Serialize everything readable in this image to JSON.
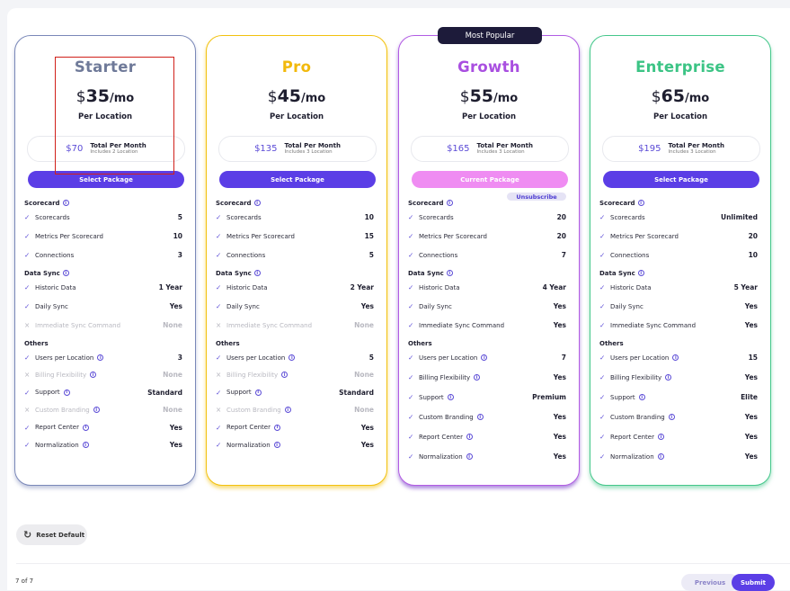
{
  "badge": "Most Popular",
  "plans": [
    {
      "key": "starter",
      "name": "Starter",
      "name_color": "#6f7a99",
      "currency": "$",
      "price": "35",
      "per": "/mo",
      "per_location": "Per Location",
      "total_amount": "$70",
      "total_label": "Total Per Month",
      "total_sub": "Includes 2 Location",
      "button": "Select Package",
      "button_state": "select",
      "unsubscribe": "",
      "groups": [
        {
          "title": "Scorecard",
          "info": true,
          "rows": [
            {
              "label": "Scorecards",
              "value": "5",
              "on": true,
              "info": false
            },
            {
              "label": "Metrics Per Scorecard",
              "value": "10",
              "on": true,
              "info": false
            },
            {
              "label": "Connections",
              "value": "3",
              "on": true,
              "info": false
            }
          ]
        },
        {
          "title": "Data Sync",
          "info": true,
          "rows": [
            {
              "label": "Historic Data",
              "value": "1 Year",
              "on": true,
              "info": false
            },
            {
              "label": "Daily Sync",
              "value": "Yes",
              "on": true,
              "info": false
            },
            {
              "label": "Immediate Sync Command",
              "value": "None",
              "on": false,
              "info": false
            }
          ]
        },
        {
          "title": "Others",
          "info": false,
          "rows": [
            {
              "label": "Users per Location",
              "value": "3",
              "on": true,
              "info": true
            },
            {
              "label": "Billing Flexibility",
              "value": "None",
              "on": false,
              "info": true
            },
            {
              "label": "Support",
              "value": "Standard",
              "on": true,
              "info": true
            },
            {
              "label": "Custom Branding",
              "value": "None",
              "on": false,
              "info": true
            },
            {
              "label": "Report Center",
              "value": "Yes",
              "on": true,
              "info": true
            },
            {
              "label": "Normalization",
              "value": "Yes",
              "on": true,
              "info": true
            }
          ]
        }
      ]
    },
    {
      "key": "pro",
      "name": "Pro",
      "name_color": "#f2b90c",
      "currency": "$",
      "price": "45",
      "per": "/mo",
      "per_location": "Per Location",
      "total_amount": "$135",
      "total_label": "Total Per Month",
      "total_sub": "Includes 3 Location",
      "button": "Select Package",
      "button_state": "select",
      "unsubscribe": "",
      "groups": [
        {
          "title": "Scorecard",
          "info": true,
          "rows": [
            {
              "label": "Scorecards",
              "value": "10",
              "on": true,
              "info": false
            },
            {
              "label": "Metrics Per Scorecard",
              "value": "15",
              "on": true,
              "info": false
            },
            {
              "label": "Connections",
              "value": "5",
              "on": true,
              "info": false
            }
          ]
        },
        {
          "title": "Data Sync",
          "info": true,
          "rows": [
            {
              "label": "Historic Data",
              "value": "2 Year",
              "on": true,
              "info": false
            },
            {
              "label": "Daily Sync",
              "value": "Yes",
              "on": true,
              "info": false
            },
            {
              "label": "Immediate Sync Command",
              "value": "None",
              "on": false,
              "info": false
            }
          ]
        },
        {
          "title": "Others",
          "info": false,
          "rows": [
            {
              "label": "Users per Location",
              "value": "5",
              "on": true,
              "info": true
            },
            {
              "label": "Billing Flexibility",
              "value": "None",
              "on": false,
              "info": true
            },
            {
              "label": "Support",
              "value": "Standard",
              "on": true,
              "info": true
            },
            {
              "label": "Custom Branding",
              "value": "None",
              "on": false,
              "info": true
            },
            {
              "label": "Report Center",
              "value": "Yes",
              "on": true,
              "info": true
            },
            {
              "label": "Normalization",
              "value": "Yes",
              "on": true,
              "info": true
            }
          ]
        }
      ]
    },
    {
      "key": "growth",
      "name": "Growth",
      "name_color": "#a94fe0",
      "currency": "$",
      "price": "55",
      "per": "/mo",
      "per_location": "Per Location",
      "total_amount": "$165",
      "total_label": "Total Per Month",
      "total_sub": "Includes 3 Location",
      "button": "Current Package",
      "button_state": "current",
      "unsubscribe": "Unsubscribe",
      "groups": [
        {
          "title": "Scorecard",
          "info": true,
          "rows": [
            {
              "label": "Scorecards",
              "value": "20",
              "on": true,
              "info": false
            },
            {
              "label": "Metrics Per Scorecard",
              "value": "20",
              "on": true,
              "info": false
            },
            {
              "label": "Connections",
              "value": "7",
              "on": true,
              "info": false
            }
          ]
        },
        {
          "title": "Data Sync",
          "info": true,
          "rows": [
            {
              "label": "Historic Data",
              "value": "4 Year",
              "on": true,
              "info": false
            },
            {
              "label": "Daily Sync",
              "value": "Yes",
              "on": true,
              "info": false
            },
            {
              "label": "Immediate Sync Command",
              "value": "Yes",
              "on": true,
              "info": false
            }
          ]
        },
        {
          "title": "Others",
          "info": false,
          "rows": [
            {
              "label": "Users per Location",
              "value": "7",
              "on": true,
              "info": true
            },
            {
              "label": "Billing Flexibility",
              "value": "Yes",
              "on": true,
              "info": true
            },
            {
              "label": "Support",
              "value": "Premium",
              "on": true,
              "info": true
            },
            {
              "label": "Custom Branding",
              "value": "Yes",
              "on": true,
              "info": true
            },
            {
              "label": "Report Center",
              "value": "Yes",
              "on": true,
              "info": true
            },
            {
              "label": "Normalization",
              "value": "Yes",
              "on": true,
              "info": true
            }
          ]
        }
      ]
    },
    {
      "key": "enterprise",
      "name": "Enterprise",
      "name_color": "#3cc485",
      "currency": "$",
      "price": "65",
      "per": "/mo",
      "per_location": "Per Location",
      "total_amount": "$195",
      "total_label": "Total Per Month",
      "total_sub": "Includes 3 Location",
      "button": "Select Package",
      "button_state": "select",
      "unsubscribe": "",
      "groups": [
        {
          "title": "Scorecard",
          "info": true,
          "rows": [
            {
              "label": "Scorecards",
              "value": "Unlimited",
              "on": true,
              "info": false
            },
            {
              "label": "Metrics Per Scorecard",
              "value": "20",
              "on": true,
              "info": false
            },
            {
              "label": "Connections",
              "value": "10",
              "on": true,
              "info": false
            }
          ]
        },
        {
          "title": "Data Sync",
          "info": true,
          "rows": [
            {
              "label": "Historic Data",
              "value": "5 Year",
              "on": true,
              "info": false
            },
            {
              "label": "Daily Sync",
              "value": "Yes",
              "on": true,
              "info": false
            },
            {
              "label": "Immediate Sync Command",
              "value": "Yes",
              "on": true,
              "info": false
            }
          ]
        },
        {
          "title": "Others",
          "info": false,
          "rows": [
            {
              "label": "Users per Location",
              "value": "15",
              "on": true,
              "info": true
            },
            {
              "label": "Billing Flexibility",
              "value": "Yes",
              "on": true,
              "info": true
            },
            {
              "label": "Support",
              "value": "Elite",
              "on": true,
              "info": true
            },
            {
              "label": "Custom Branding",
              "value": "Yes",
              "on": true,
              "info": true
            },
            {
              "label": "Report Center",
              "value": "Yes",
              "on": true,
              "info": true
            },
            {
              "label": "Normalization",
              "value": "Yes",
              "on": true,
              "info": true
            }
          ]
        }
      ]
    }
  ],
  "footer": {
    "reset_label": "Reset Default",
    "pager": "7 of 7",
    "previous_label": "Previous",
    "submit_label": "Submit"
  },
  "icons": {
    "check": "check-icon",
    "cross": "cross-icon",
    "info": "info-icon",
    "reset": "reset-icon"
  },
  "colors": {
    "accent": "#5b3ee6",
    "current_button": "#ef8cf2",
    "highlight_box": "#d0201a"
  }
}
